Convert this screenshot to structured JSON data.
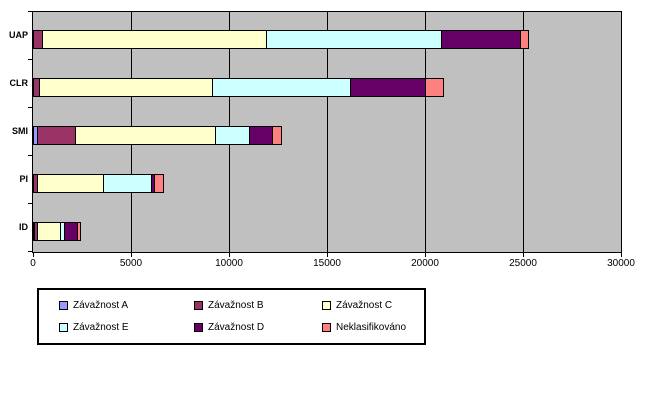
{
  "page": {
    "background": "#FFFFFF",
    "plot_background": "#C0C0C0",
    "gridline_color": "#000000"
  },
  "chart_data": {
    "type": "bar",
    "orientation": "horizontal",
    "stacked": true,
    "title": "",
    "xlabel": "",
    "ylabel": "",
    "categories": [
      "UAP",
      "CLR",
      "SMI",
      "PI",
      "ID"
    ],
    "series": [
      {
        "name": "Závažnost A",
        "color": "#9999FF",
        "values": [
          0,
          0,
          250,
          0,
          100
        ]
      },
      {
        "name": "Závažnost B",
        "color": "#993366",
        "values": [
          500,
          350,
          2000,
          250,
          200
        ]
      },
      {
        "name": "Závažnost C",
        "color": "#FFFFCC",
        "values": [
          11500,
          8900,
          7200,
          3400,
          1200
        ]
      },
      {
        "name": "Závažnost E",
        "color": "#CCFFFF",
        "values": [
          9000,
          7100,
          1800,
          2500,
          250
        ]
      },
      {
        "name": "Závažnost D",
        "color": "#660066",
        "values": [
          4100,
          3900,
          1200,
          200,
          700
        ]
      },
      {
        "name": "Neklasifikováno",
        "color": "#FF8080",
        "values": [
          450,
          950,
          500,
          500,
          200
        ]
      }
    ],
    "xlim": [
      0,
      30000
    ],
    "x_ticks": [
      0,
      5000,
      10000,
      15000,
      20000,
      25000,
      30000
    ],
    "grid": true,
    "legend_position": "bottom"
  }
}
